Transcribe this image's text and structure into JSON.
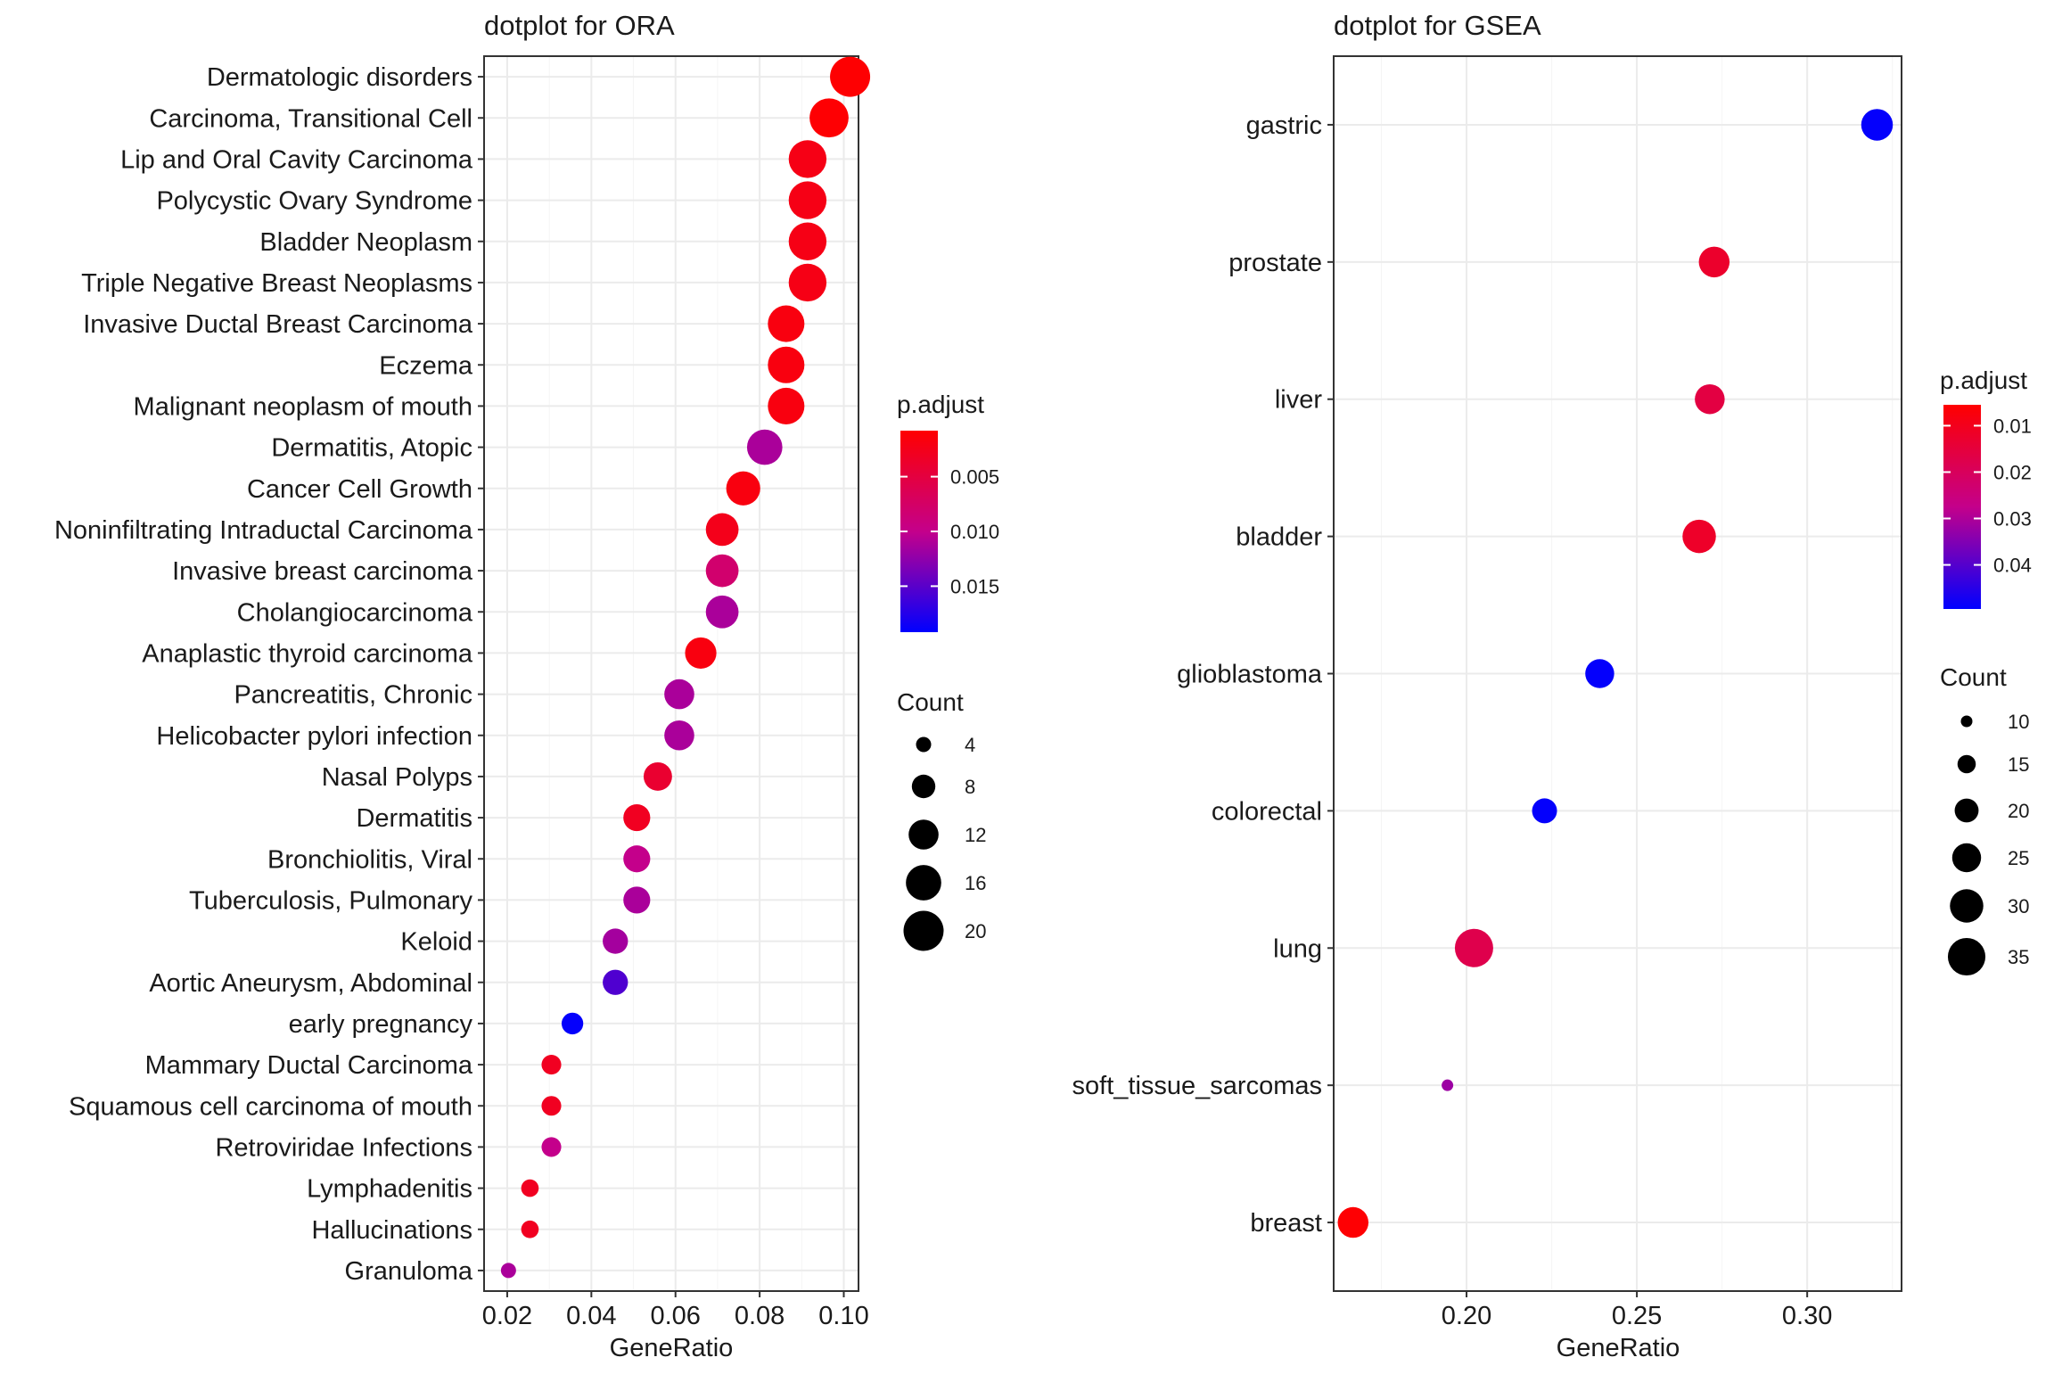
{
  "chart_data": [
    {
      "type": "scatter",
      "title": "dotplot for ORA",
      "xlabel": "GeneRatio",
      "ylabel": "",
      "xlim": [
        0.0145,
        0.1035
      ],
      "xticks": [
        0.02,
        0.04,
        0.06,
        0.08,
        0.1
      ],
      "xtick_labels": [
        "0.02",
        "0.04",
        "0.06",
        "0.08",
        "0.10"
      ],
      "grid": true,
      "legend_position": "right",
      "color_scale": {
        "title": "p.adjust",
        "low_color": "#ff0000",
        "high_color": "#0000ff",
        "min": 0.0008,
        "max": 0.0192,
        "ticks": [
          0.005,
          0.01,
          0.015
        ],
        "tick_labels": [
          "0.005",
          "0.010",
          "0.015"
        ]
      },
      "size_scale": {
        "title": "Count",
        "min": 4,
        "max": 20,
        "ticks": [
          4,
          8,
          12,
          16,
          20
        ],
        "tick_labels": [
          "4",
          "8",
          "12",
          "16",
          "20"
        ]
      },
      "categories": [
        "Dermatologic disorders",
        "Carcinoma, Transitional Cell",
        "Lip and Oral Cavity Carcinoma",
        "Polycystic Ovary Syndrome",
        "Bladder Neoplasm",
        "Triple Negative Breast Neoplasms",
        "Invasive Ductal Breast Carcinoma",
        "Eczema",
        "Malignant neoplasm of mouth",
        "Dermatitis, Atopic",
        "Cancer Cell Growth",
        "Noninfiltrating Intraductal Carcinoma",
        "Invasive breast carcinoma",
        "Cholangiocarcinoma",
        "Anaplastic thyroid carcinoma",
        "Pancreatitis, Chronic",
        "Helicobacter pylori infection",
        "Nasal Polyps",
        "Dermatitis",
        "Bronchiolitis, Viral",
        "Tuberculosis, Pulmonary",
        "Keloid",
        "Aortic Aneurysm, Abdominal",
        "early pregnancy",
        "Mammary Ductal Carcinoma",
        "Squamous cell carcinoma of mouth",
        "Retroviridae Infections",
        "Lymphadenitis",
        "Hallucinations",
        "Granuloma"
      ],
      "points": [
        {
          "x": 0.1015,
          "count": 20,
          "p_adjust": 0.0009
        },
        {
          "x": 0.0965,
          "count": 19,
          "p_adjust": 0.001
        },
        {
          "x": 0.0914,
          "count": 18,
          "p_adjust": 0.0022
        },
        {
          "x": 0.0914,
          "count": 18,
          "p_adjust": 0.0022
        },
        {
          "x": 0.0914,
          "count": 18,
          "p_adjust": 0.0022
        },
        {
          "x": 0.0914,
          "count": 18,
          "p_adjust": 0.0022
        },
        {
          "x": 0.0863,
          "count": 17,
          "p_adjust": 0.0018
        },
        {
          "x": 0.0863,
          "count": 17,
          "p_adjust": 0.0018
        },
        {
          "x": 0.0863,
          "count": 17,
          "p_adjust": 0.0018
        },
        {
          "x": 0.0812,
          "count": 16,
          "p_adjust": 0.0112
        },
        {
          "x": 0.0761,
          "count": 15,
          "p_adjust": 0.0018
        },
        {
          "x": 0.0711,
          "count": 14,
          "p_adjust": 0.0025
        },
        {
          "x": 0.0711,
          "count": 14,
          "p_adjust": 0.008
        },
        {
          "x": 0.0711,
          "count": 14,
          "p_adjust": 0.0112
        },
        {
          "x": 0.066,
          "count": 13,
          "p_adjust": 0.0018
        },
        {
          "x": 0.0609,
          "count": 12,
          "p_adjust": 0.0112
        },
        {
          "x": 0.0609,
          "count": 12,
          "p_adjust": 0.0112
        },
        {
          "x": 0.0558,
          "count": 11,
          "p_adjust": 0.004
        },
        {
          "x": 0.0508,
          "count": 10,
          "p_adjust": 0.003
        },
        {
          "x": 0.0508,
          "count": 10,
          "p_adjust": 0.01
        },
        {
          "x": 0.0508,
          "count": 10,
          "p_adjust": 0.0112
        },
        {
          "x": 0.0457,
          "count": 9,
          "p_adjust": 0.0115
        },
        {
          "x": 0.0457,
          "count": 9,
          "p_adjust": 0.0155
        },
        {
          "x": 0.0355,
          "count": 7,
          "p_adjust": 0.019
        },
        {
          "x": 0.0305,
          "count": 6,
          "p_adjust": 0.003
        },
        {
          "x": 0.0305,
          "count": 6,
          "p_adjust": 0.003
        },
        {
          "x": 0.0305,
          "count": 6,
          "p_adjust": 0.01
        },
        {
          "x": 0.0254,
          "count": 5,
          "p_adjust": 0.003
        },
        {
          "x": 0.0254,
          "count": 5,
          "p_adjust": 0.003
        },
        {
          "x": 0.0203,
          "count": 4,
          "p_adjust": 0.0112
        }
      ]
    },
    {
      "type": "scatter",
      "title": "dotplot for GSEA",
      "xlabel": "GeneRatio",
      "ylabel": "",
      "xlim": [
        0.161,
        0.3277
      ],
      "xticks": [
        0.2,
        0.25,
        0.3
      ],
      "xtick_labels": [
        "0.20",
        "0.25",
        "0.30"
      ],
      "grid": true,
      "legend_position": "right",
      "color_scale": {
        "title": "p.adjust",
        "low_color": "#ff0000",
        "high_color": "#0000ff",
        "min": 0.0055,
        "max": 0.0495,
        "ticks": [
          0.01,
          0.02,
          0.03,
          0.04
        ],
        "tick_labels": [
          "0.01",
          "0.02",
          "0.03",
          "0.04"
        ]
      },
      "size_scale": {
        "title": "Count",
        "min": 10,
        "max": 36,
        "ticks": [
          10,
          15,
          20,
          25,
          30,
          35
        ],
        "tick_labels": [
          "10",
          "15",
          "20",
          "25",
          "30",
          "35"
        ]
      },
      "categories": [
        "gastric",
        "prostate",
        "liver",
        "bladder",
        "glioblastoma",
        "colorectal",
        "lung",
        "soft_tissue_sarcomas",
        "breast"
      ],
      "points": [
        {
          "x": 0.3205,
          "count": 28,
          "p_adjust": 0.049
        },
        {
          "x": 0.2727,
          "count": 27,
          "p_adjust": 0.0125
        },
        {
          "x": 0.2714,
          "count": 26,
          "p_adjust": 0.016
        },
        {
          "x": 0.2683,
          "count": 30,
          "p_adjust": 0.012
        },
        {
          "x": 0.2391,
          "count": 25,
          "p_adjust": 0.049
        },
        {
          "x": 0.2229,
          "count": 21,
          "p_adjust": 0.049
        },
        {
          "x": 0.2022,
          "count": 36,
          "p_adjust": 0.0175
        },
        {
          "x": 0.1944,
          "count": 7,
          "p_adjust": 0.032
        },
        {
          "x": 0.1667,
          "count": 27,
          "p_adjust": 0.006
        }
      ]
    }
  ]
}
